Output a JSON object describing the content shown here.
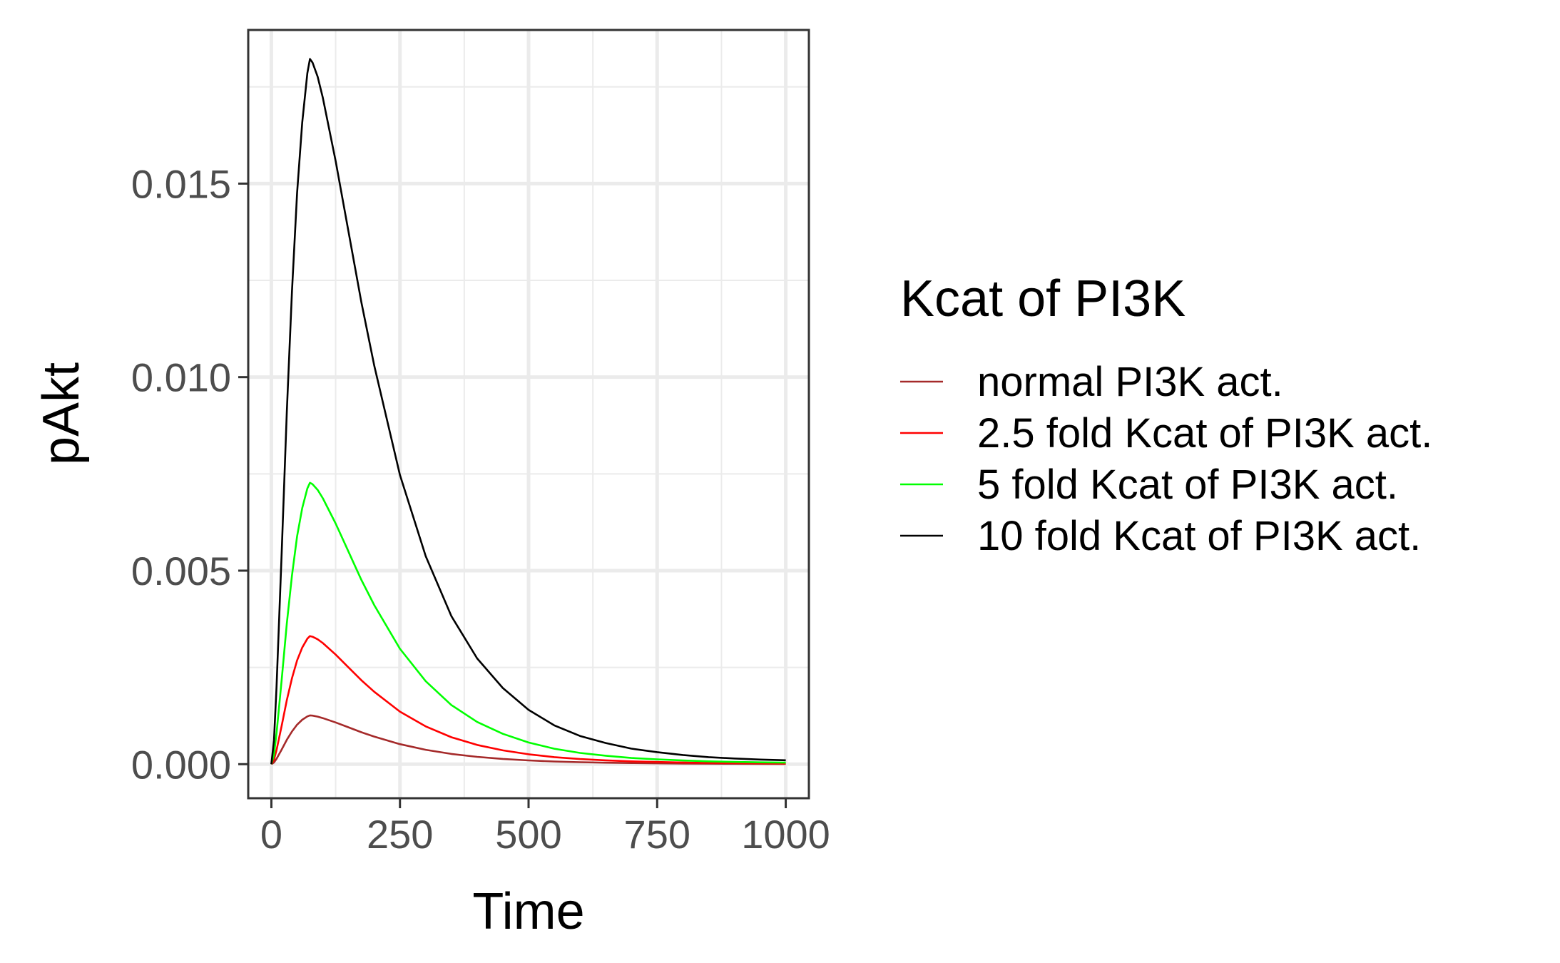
{
  "chart_data": {
    "type": "line",
    "xlabel": "Time",
    "ylabel": "pAkt",
    "xlim": [
      -45,
      1045
    ],
    "ylim": [
      -0.00088,
      0.01897
    ],
    "xticks": [
      0,
      250,
      500,
      750,
      1000
    ],
    "xtick_labels": [
      "0",
      "250",
      "500",
      "750",
      "1000"
    ],
    "yticks": [
      0.0,
      0.005,
      0.01,
      0.015
    ],
    "ytick_labels": [
      "0.000",
      "0.005",
      "0.010",
      "0.015"
    ],
    "grid": true,
    "legend": {
      "title": "Kcat of PI3K",
      "placement": "right"
    },
    "series": [
      {
        "name": "normal PI3K act.",
        "color": "#a52a2a",
        "peak": 0.00126
      },
      {
        "name": "2.5 fold Kcat of PI3K act.",
        "color": "#ff0000",
        "peak": 0.00331
      },
      {
        "name": "5 fold Kcat of PI3K act.",
        "color": "#00ff00",
        "peak": 0.00727
      },
      {
        "name": "10 fold Kcat of PI3K act.",
        "color": "#000000",
        "peak": 0.01822
      }
    ],
    "x": [
      0,
      5,
      10,
      20,
      30,
      40,
      50,
      60,
      70,
      75,
      80,
      90,
      100,
      125,
      150,
      175,
      200,
      250,
      300,
      350,
      400,
      450,
      500,
      550,
      600,
      650,
      700,
      750,
      800,
      850,
      900,
      950,
      1000
    ],
    "curve_shape": [
      0,
      0.034,
      0.11,
      0.3,
      0.5,
      0.67,
      0.81,
      0.91,
      0.98,
      1.0,
      0.995,
      0.975,
      0.945,
      0.855,
      0.755,
      0.655,
      0.565,
      0.41,
      0.295,
      0.21,
      0.15,
      0.108,
      0.077,
      0.055,
      0.04,
      0.03,
      0.022,
      0.017,
      0.013,
      0.01,
      0.008,
      0.0065,
      0.0055
    ]
  }
}
